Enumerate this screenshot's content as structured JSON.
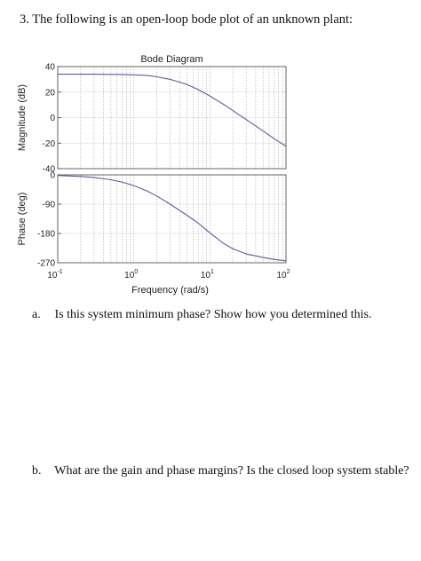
{
  "question": {
    "number": "3.",
    "text": "The following is an open-loop bode plot of an unknown plant:"
  },
  "subquestions": [
    {
      "tag": "a.",
      "text": "Is this system minimum phase? Show how you determined this."
    },
    {
      "tag": "b.",
      "text": "What are the gain and phase margins? Is the closed loop system stable?"
    }
  ],
  "chart_data": [
    {
      "type": "line",
      "title": "Bode Diagram",
      "ylabel": "Magnitude (dB)",
      "xscale": "log",
      "xlim": [
        0.1,
        100
      ],
      "ylim": [
        -40,
        40
      ],
      "yticks": [
        -40,
        -20,
        0,
        20,
        40
      ],
      "grid": true,
      "line_color": "#5b5b9e",
      "series": [
        {
          "x": [
            0.1,
            0.2,
            0.3,
            0.5,
            0.7,
            1,
            1.5,
            2,
            3,
            5,
            7,
            10,
            15,
            20,
            30,
            50,
            70,
            100
          ],
          "values": [
            34,
            34,
            34,
            33.9,
            33.8,
            33.5,
            33,
            32,
            30,
            26,
            22,
            17,
            10.5,
            5.5,
            -1.5,
            -10.5,
            -16.5,
            -22.5
          ]
        }
      ]
    },
    {
      "type": "line",
      "ylabel": "Phase (deg)",
      "xlabel": "Frequency  (rad/s)",
      "xscale": "log",
      "xlim": [
        0.1,
        100
      ],
      "ylim": [
        -270,
        0
      ],
      "yticks": [
        -270,
        -180,
        -90,
        0
      ],
      "xticks": [
        0.1,
        1,
        10,
        100
      ],
      "xtick_labels": [
        {
          "base": "10",
          "exp": "-1"
        },
        {
          "base": "10",
          "exp": "0"
        },
        {
          "base": "10",
          "exp": "1"
        },
        {
          "base": "10",
          "exp": "2"
        }
      ],
      "grid": true,
      "line_color": "#5b5b9e",
      "series": [
        {
          "x": [
            0.1,
            0.2,
            0.3,
            0.5,
            0.7,
            1,
            1.5,
            2,
            3,
            5,
            7,
            10,
            15,
            20,
            30,
            50,
            70,
            100
          ],
          "values": [
            -2,
            -5,
            -8,
            -15,
            -22,
            -33,
            -50,
            -65,
            -90,
            -124,
            -148,
            -178,
            -210,
            -227,
            -243,
            -254,
            -260,
            -264
          ]
        }
      ]
    }
  ]
}
